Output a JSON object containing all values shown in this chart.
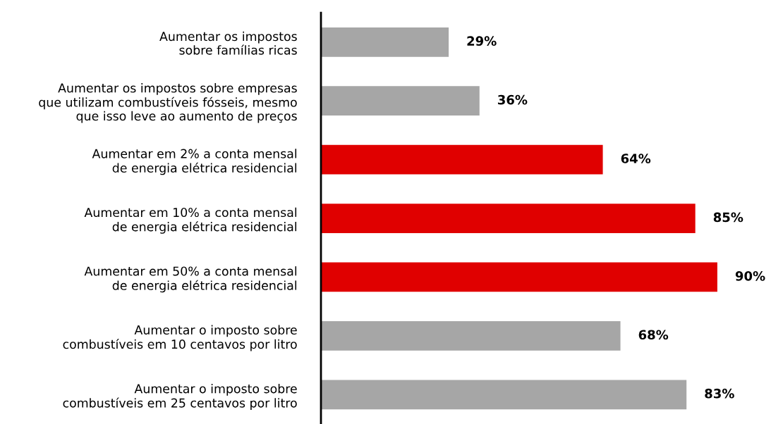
{
  "chart_data": {
    "type": "bar",
    "orientation": "horizontal",
    "categories": [
      "Aumentar os impostos\nsobre famílias ricas",
      "Aumentar os impostos sobre empresas\nque utilizam combustíveis fósseis, mesmo\nque isso leve ao aumento de preços",
      "Aumentar em 2% a conta mensal\nde energia elétrica residencial",
      "Aumentar em 10% a conta mensal\nde energia elétrica residencial",
      "Aumentar em 50% a conta mensal\nde energia elétrica residencial",
      "Aumentar o imposto sobre\ncombustíveis em 10 centavos por litro",
      "Aumentar o imposto sobre\ncombustíveis em 25 centavos por litro"
    ],
    "values": [
      29,
      36,
      64,
      85,
      90,
      68,
      83
    ],
    "colors": [
      "#a6a6a6",
      "#a6a6a6",
      "#e00000",
      "#e00000",
      "#e00000",
      "#a6a6a6",
      "#a6a6a6"
    ],
    "value_labels": [
      "29%",
      "36%",
      "64%",
      "85%",
      "90%",
      "68%",
      "83%"
    ],
    "tick_labels": "y",
    "grid": false,
    "legend": false
  }
}
